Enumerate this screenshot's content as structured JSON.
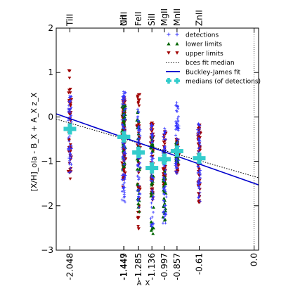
{
  "chart_data": {
    "type": "scatter",
    "ylabel": "[X/H]_ola - B_X + A_X z_X",
    "xlabel": "A_X",
    "xlim": [
      -2.2,
      0.05
    ],
    "ylim": [
      -3,
      2
    ],
    "y_ticks": [
      -3,
      -2,
      -1,
      0,
      1,
      2
    ],
    "x_ticks": [
      -2.048,
      -1.449,
      -1.447,
      -1.285,
      -1.136,
      -0.997,
      -0.857,
      -0.61,
      0.0
    ],
    "x_tick_labels": [
      "-2.048",
      "-1.449",
      "-1.447",
      "-1.285",
      "-1.136",
      "-0.997",
      "-0.857",
      "-0.61",
      "0.0"
    ],
    "ions": [
      {
        "name": "TiII",
        "x": -2.048,
        "median": -0.27,
        "det_range": [
          -1.3,
          0.5
        ],
        "lower_range": null,
        "upper_range": [
          -1.55,
          1.1
        ]
      },
      {
        "name": "NiI",
        "x": -1.449,
        "median": -0.45,
        "det_range": [
          -1.95,
          0.62
        ],
        "lower_range": [
          -1.2,
          0.35
        ],
        "upper_range": [
          -1.6,
          0.45
        ]
      },
      {
        "name": "CrII",
        "x": -1.447,
        "median": -0.45,
        "det_range": [
          -1.8,
          0.55
        ],
        "lower_range": [
          -1.3,
          0.3
        ],
        "upper_range": [
          -1.5,
          0.4
        ]
      },
      {
        "name": "FeII",
        "x": -1.285,
        "median": -0.8,
        "det_range": [
          -2.05,
          0.2
        ],
        "lower_range": [
          -2.35,
          0.15
        ],
        "upper_range": [
          -2.6,
          0.58
        ]
      },
      {
        "name": "SiII",
        "x": -1.136,
        "median": -1.15,
        "det_range": [
          -2.5,
          -0.1
        ],
        "lower_range": [
          -2.75,
          -0.35
        ],
        "upper_range": [
          -1.9,
          -0.1
        ]
      },
      {
        "name": "MgII",
        "x": -0.997,
        "median": -0.95,
        "det_range": [
          -2.4,
          -0.25
        ],
        "lower_range": [
          -2.45,
          -0.7
        ],
        "upper_range": [
          -1.6,
          -0.3
        ]
      },
      {
        "name": "MnII",
        "x": -0.857,
        "median": -0.77,
        "det_range": [
          -1.3,
          0.36
        ],
        "lower_range": [
          -1.05,
          -0.55
        ],
        "upper_range": [
          -1.3,
          -0.5
        ]
      },
      {
        "name": "ZnII",
        "x": -0.61,
        "median": -0.93,
        "det_range": [
          -1.9,
          -0.1
        ],
        "lower_range": null,
        "upper_range": [
          -1.95,
          -0.18
        ]
      }
    ],
    "bces_fit_median": {
      "x": [
        -2.2,
        0.05
      ],
      "y": [
        -0.05,
        -1.37
      ]
    },
    "buckley_james_fit": {
      "x": [
        -2.2,
        0.05
      ],
      "y": [
        0.07,
        -1.53
      ]
    },
    "vertical_line_x": 0.0,
    "legend": {
      "position": "top-right",
      "entries": [
        {
          "label": "detections",
          "marker": "plus",
          "color": "#3333ff"
        },
        {
          "label": "lower limits",
          "marker": "triangle-up",
          "color": "#006600"
        },
        {
          "label": "upper limits",
          "marker": "triangle-down",
          "color": "#a00000"
        },
        {
          "label": "bces fit median",
          "marker": "dotted-line",
          "color": "#000000"
        },
        {
          "label": "Buckley-James fit",
          "marker": "solid-line",
          "color": "#0000cc"
        },
        {
          "label": "medians (of detections)",
          "marker": "cross-box",
          "color": "#33cccc"
        }
      ]
    },
    "grid": false
  },
  "colors": {
    "detections": "#3333ff",
    "lower_limits": "#006600",
    "upper_limits": "#a00000",
    "bces_line": "#000000",
    "bj_line": "#0000cc",
    "medians": "#33cccc",
    "axis": "#000000"
  }
}
